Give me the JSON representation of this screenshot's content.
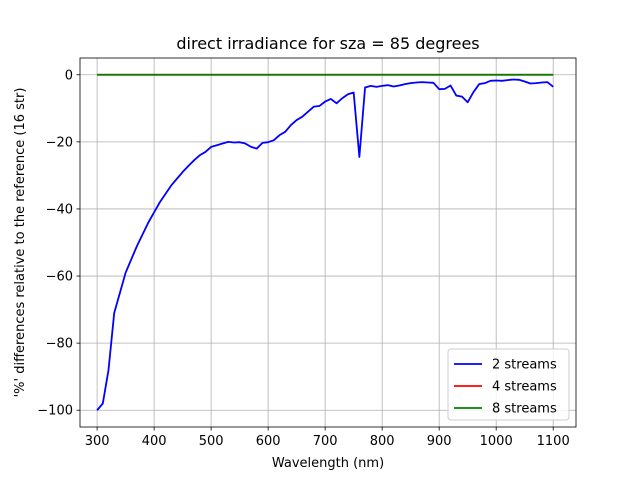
{
  "chart_data": {
    "type": "line",
    "title": "direct irradiance for sza = 85 degrees",
    "xlabel": "Wavelength (nm)",
    "ylabel": "'%' differences relative to the reference (16 str)",
    "xlim": [
      270,
      1140
    ],
    "ylim": [
      -105,
      5
    ],
    "xticks": [
      300,
      400,
      500,
      600,
      700,
      800,
      900,
      1000,
      1100
    ],
    "yticks": [
      0,
      -20,
      -40,
      -60,
      -80,
      -100
    ],
    "grid": true,
    "legend_position": "lower-right",
    "series": [
      {
        "name": "2 streams",
        "color": "#0000ff",
        "x": [
          300,
          310,
          320,
          330,
          340,
          350,
          360,
          370,
          380,
          390,
          400,
          410,
          420,
          430,
          440,
          450,
          460,
          470,
          480,
          490,
          500,
          510,
          520,
          530,
          540,
          550,
          560,
          570,
          580,
          590,
          600,
          610,
          620,
          630,
          640,
          650,
          660,
          670,
          680,
          690,
          700,
          710,
          720,
          730,
          740,
          750,
          760,
          770,
          780,
          790,
          800,
          810,
          820,
          830,
          840,
          850,
          860,
          870,
          880,
          890,
          900,
          910,
          920,
          930,
          940,
          950,
          960,
          970,
          980,
          990,
          1000,
          1010,
          1020,
          1030,
          1040,
          1050,
          1060,
          1070,
          1080,
          1090,
          1100
        ],
        "values": [
          -100,
          -98,
          -88,
          -71,
          -65,
          -59,
          -55,
          -51,
          -47.5,
          -44,
          -41,
          -38,
          -35.5,
          -33,
          -31,
          -29,
          -27.2,
          -25.5,
          -24,
          -23,
          -21.5,
          -21,
          -20.5,
          -20,
          -20.2,
          -20.1,
          -20.5,
          -21.5,
          -22,
          -20.3,
          -20.1,
          -19.5,
          -18,
          -17,
          -15,
          -13.5,
          -12.5,
          -11,
          -9.5,
          -9.3,
          -8,
          -7.2,
          -8.5,
          -7,
          -5.8,
          -5.3,
          -24.5,
          -3.8,
          -3.3,
          -3.6,
          -3.3,
          -3.1,
          -3.5,
          -3.2,
          -2.8,
          -2.5,
          -2.3,
          -2.2,
          -2.3,
          -2.4,
          -4.3,
          -4.2,
          -3.2,
          -6.2,
          -6.5,
          -8.2,
          -5.2,
          -2.8,
          -2.5,
          -1.8,
          -1.7,
          -1.8,
          -1.6,
          -1.4,
          -1.5,
          -2,
          -2.6,
          -2.5,
          -2.3,
          -2.2,
          -3.6
        ]
      },
      {
        "name": "4 streams",
        "color": "#ff0000",
        "x": [
          300,
          1100
        ],
        "values": [
          0,
          0
        ]
      },
      {
        "name": "8 streams",
        "color": "#008000",
        "x": [
          300,
          1100
        ],
        "values": [
          0,
          0
        ]
      }
    ]
  }
}
